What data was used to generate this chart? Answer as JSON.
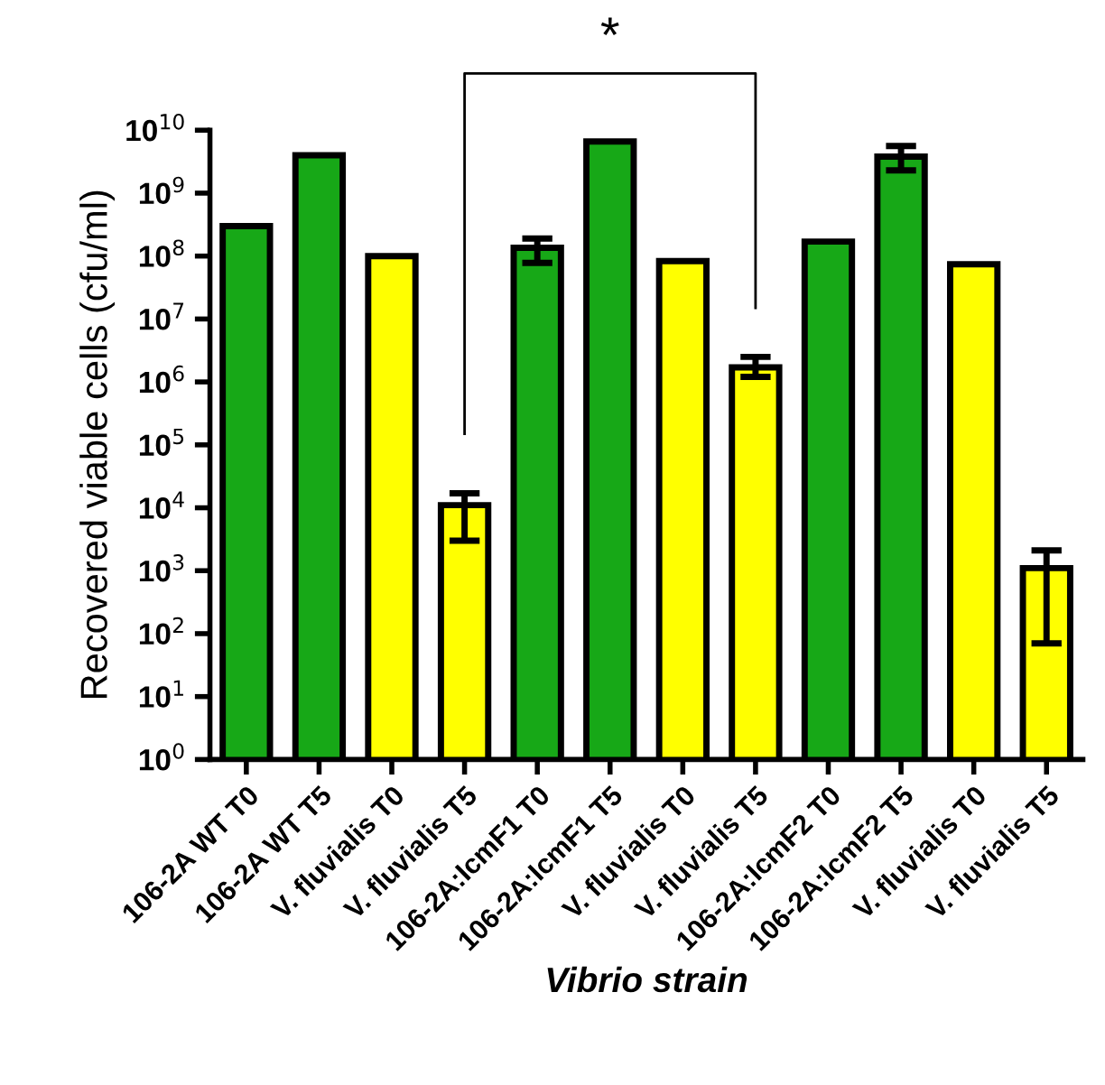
{
  "chart_data": {
    "type": "bar",
    "xlabel": "Vibrio strain",
    "ylabel": "Recovered viable cells (cfu/ml)",
    "categories": [
      "106-2A WT T0",
      "106-2A WT T5",
      "V. fluvialis T0",
      "V. fluvialis T5",
      "106-2A:IcmF1 T0",
      "106-2A:IcmF1 T5",
      "V. fluvialis T0",
      "V. fluvialis T5",
      "106-2A:IcmF2 T0",
      "106-2A:IcmF2 T5",
      "V. fluvialis T0",
      "V. fluvialis T5"
    ],
    "values": [
      300000000.0,
      4000000000.0,
      100000000.0,
      11000.0,
      135000000.0,
      6600000000.0,
      83000000.0,
      1700000.0,
      170000000.0,
      3800000000.0,
      74000000.0,
      1100.0
    ],
    "errors": [
      null,
      null,
      null,
      [
        3000.0,
        17000.0
      ],
      [
        78000000.0,
        190000000.0
      ],
      null,
      null,
      [
        1200000.0,
        2500000.0
      ],
      null,
      [
        2300000000.0,
        5600000000.0
      ],
      null,
      [
        70,
        2100.0
      ]
    ],
    "colors": [
      "#17a817",
      "#17a817",
      "#ffff00",
      "#ffff00",
      "#17a817",
      "#17a817",
      "#ffff00",
      "#ffff00",
      "#17a817",
      "#17a817",
      "#ffff00",
      "#ffff00"
    ],
    "log": "y",
    "ylim": [
      1,
      10000000000.0
    ],
    "yticks": [
      {
        "value": 1,
        "label": "10$^{0}$"
      },
      {
        "value": 10,
        "label": "10$^{1}$"
      },
      {
        "value": 100,
        "label": "10$^{2}$"
      },
      {
        "value": 1000,
        "label": "10$^{3}$"
      },
      {
        "value": 10000,
        "label": "10$^{4}$"
      },
      {
        "value": 100000,
        "label": "10$^{5}$"
      },
      {
        "value": 1000000,
        "label": "10$^{6}$"
      },
      {
        "value": 10000000,
        "label": "10$^{7}$"
      },
      {
        "value": 100000000,
        "label": "10$^{8}$"
      },
      {
        "value": 1000000000,
        "label": "10$^{9}$"
      },
      {
        "value": 10000000000,
        "label": "10$^{10}$"
      }
    ],
    "grid": false,
    "annotations": [
      "*"
    ]
  }
}
